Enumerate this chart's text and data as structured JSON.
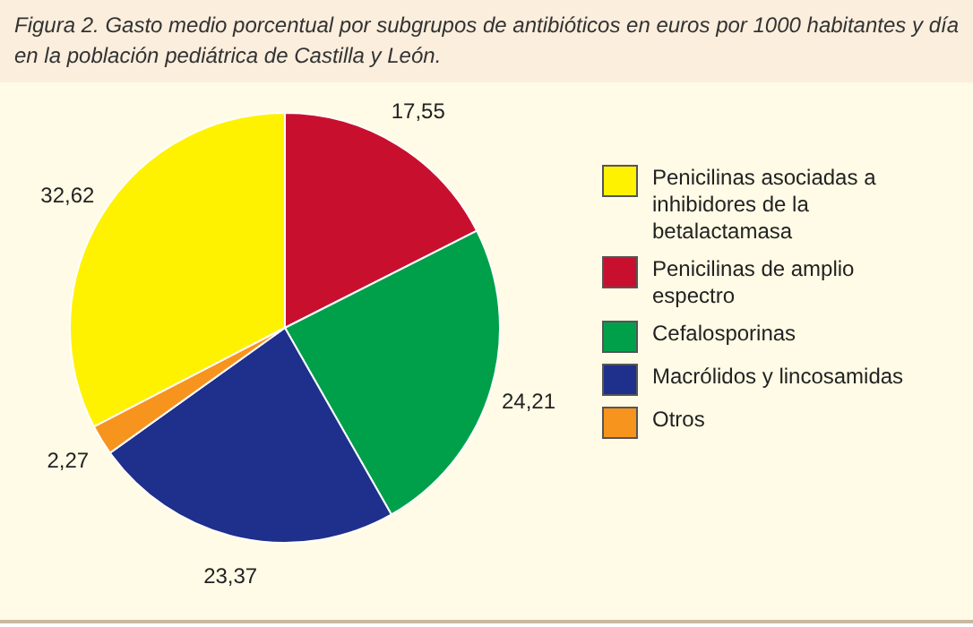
{
  "chart_data": {
    "type": "pie",
    "title": "Figura 2.  Gasto medio porcentual por subgrupos de antibióticos en euros por 1000 habitantes y día en la población pediátrica de Castilla y León.",
    "categories": [
      "Penicilinas asociadas a inhibidores de la betalactamasa",
      "Penicilinas de amplio espectro",
      "Cefalosporinas",
      "Macrólidos y lincosamidas",
      "Otros"
    ],
    "values": [
      32.62,
      17.55,
      24.21,
      23.37,
      2.27
    ],
    "colors": [
      "#fff200",
      "#c8102e",
      "#00a04a",
      "#1f2f8c",
      "#f7941d"
    ],
    "value_labels": [
      "32,62",
      "17,55",
      "24,21",
      "23,37",
      "2,27"
    ],
    "legend": "right"
  }
}
